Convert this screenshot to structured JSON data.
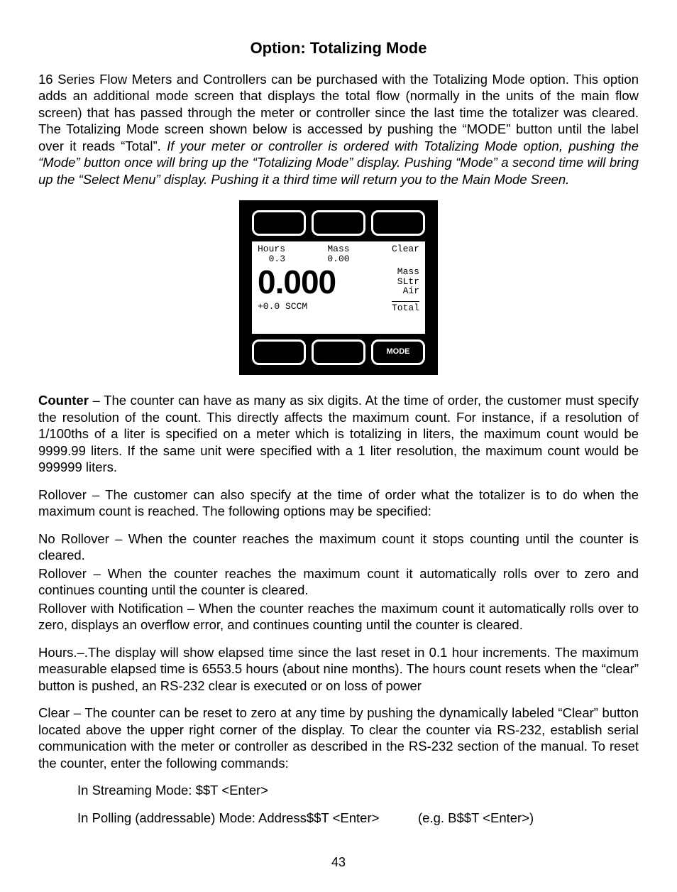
{
  "title": "Option: Totalizing Mode",
  "intro_plain": "16 Series Flow Meters and Controllers can be purchased with the Totalizing Mode option. This option adds an additional mode screen that displays the total flow (normally in the units of the main flow screen) that has passed through the meter or controller since the last time the totalizer was cleared. The Totalizing Mode screen shown below is accessed by pushing the “MODE” button until the label over it reads “Total”. ",
  "intro_italic": "If your meter or controller is ordered with Totalizing Mode option, pushing the “Mode” button once will bring up the “Totalizing Mode” display.  Pushing “Mode” a second time will bring up the “Select Menu” display. Pushing it a third time will return you to the Main Mode Sreen.",
  "device": {
    "hours_label": "Hours",
    "hours_value": "0.3",
    "mass_label": "Mass",
    "mass_value": "0.00",
    "clear_label": "Clear",
    "big_value": "0.000",
    "side_line1": "Mass",
    "side_line2": "SLtr",
    "side_line3": "Air",
    "bottom_left": "+0.0 SCCM",
    "bottom_right": "Total",
    "mode_btn": "MODE"
  },
  "counter_head": "Counter",
  "counter_body": " – The counter can have as many as six digits. At the time of order, the customer must specify the resolution of the count. This directly affects the maximum count. For instance, if a resolution of 1/100ths of a liter is specified on a meter which is totalizing in liters, the maximum count would be 9999.99 liters. If the same unit were specified with a 1 liter resolution, the maximum count would be 999999 liters.",
  "rollover_intro": "Rollover – The customer can also specify at the time of order what the totalizer is to do when the maximum count is reached. The following options may be specified:",
  "no_rollover": "No Rollover – When the counter reaches the maximum count it stops counting until the counter is cleared.",
  "rollover": "Rollover – When the counter reaches the maximum count it automatically rolls over to zero and continues counting until the counter is cleared.",
  "rollover_notif": "Rollover with Notification – When the counter reaches the maximum count it automatically rolls over to zero, displays an overflow error, and continues counting until the counter is cleared.",
  "hours_para": "Hours.–.The display will show elapsed time since the last reset in 0.1 hour increments. The maximum measurable elapsed time is 6553.5 hours (about nine months). The hours count resets when the “clear” button is pushed, an RS-232 clear is executed or on loss of power",
  "clear_para": "Clear – The counter can be reset to zero at any time by pushing the dynamically labeled “Clear” button located above the upper right corner of the display. To clear the counter via RS-232, establish serial communication with the meter or controller as described in the RS-232 section of the manual.  To reset the counter, enter the following commands:",
  "cmd_stream": "In Streaming Mode:  $$T <Enter>",
  "cmd_poll_left": "In Polling (addressable) Mode:  Address$$T <Enter>",
  "cmd_poll_right": "(e.g. B$$T <Enter>)",
  "page_number": "43"
}
